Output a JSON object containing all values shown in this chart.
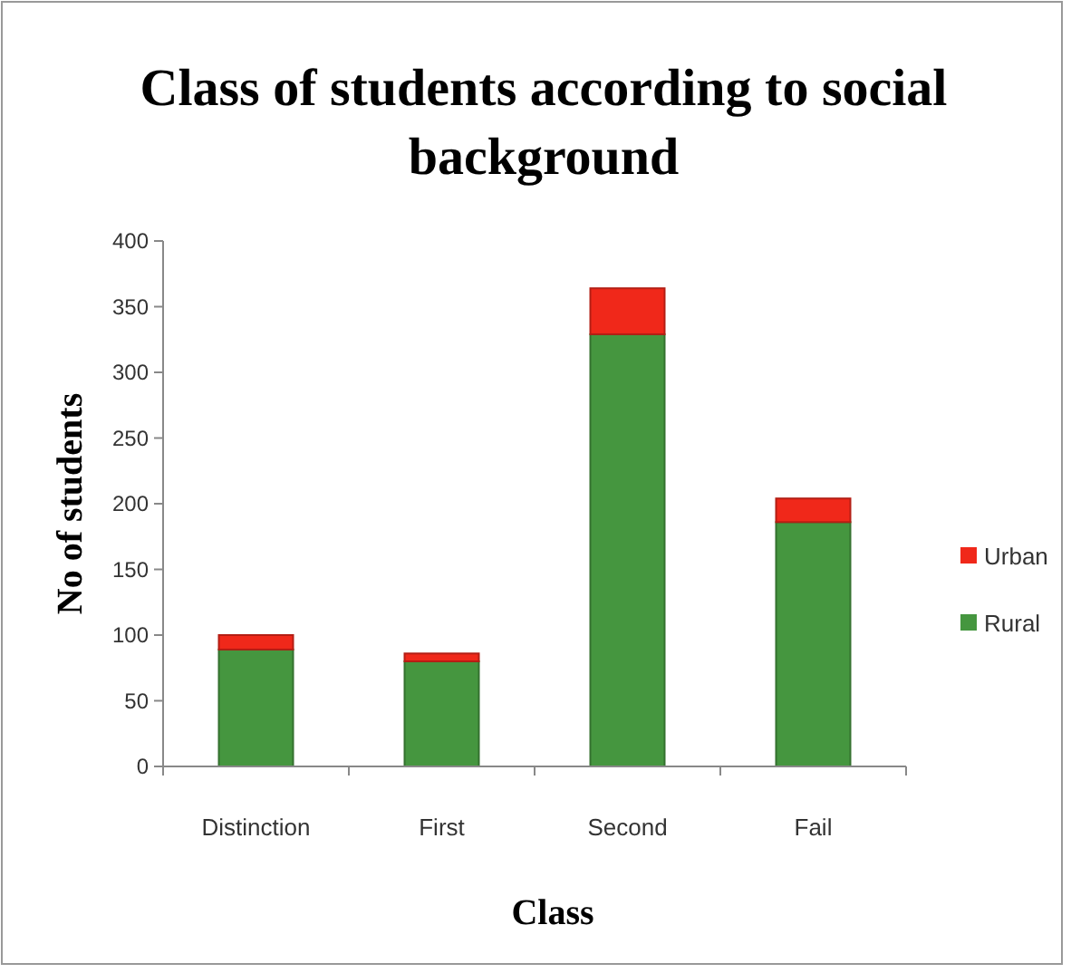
{
  "chart_data": {
    "type": "bar",
    "title": "Class of students according to social background",
    "xlabel": "Class",
    "ylabel": "No of students",
    "categories": [
      "Distinction",
      "First",
      "Second",
      "Fail"
    ],
    "stacked": true,
    "legend": "right",
    "grid": false,
    "ylim": [
      0,
      400
    ],
    "yticks": [
      0,
      50,
      100,
      150,
      200,
      250,
      300,
      350,
      400
    ],
    "series": [
      {
        "name": "Rural",
        "color": "#45963f",
        "values": [
          89,
          80,
          329,
          186
        ]
      },
      {
        "name": "Urban",
        "color": "#f0281a",
        "values": [
          11,
          6,
          35,
          18
        ]
      }
    ]
  }
}
